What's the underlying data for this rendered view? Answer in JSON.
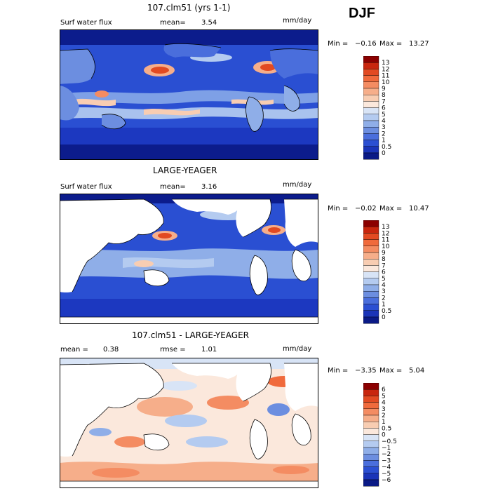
{
  "season": "DJF",
  "panels": [
    {
      "title": "107.clm51 (yrs 1-1)",
      "left_label": "Surf water flux",
      "mean_label": "mean=",
      "mean_value": "3.54",
      "units": "mm/day",
      "min_label": "Min =",
      "min_value": "−0.16",
      "max_label": "Max =",
      "max_value": "13.27",
      "colorbar_levels": [
        "13",
        "12",
        "11",
        "10",
        "9",
        "8",
        "7",
        "6",
        "5",
        "4",
        "3",
        "2",
        "1",
        "0.5",
        "0"
      ],
      "colorbar_colors": [
        "#8b0000",
        "#c8260e",
        "#e24a22",
        "#f06a3c",
        "#f48c62",
        "#f6ae8a",
        "#f8cdb2",
        "#fbe8dc",
        "#d8e4f6",
        "#b4cbf0",
        "#8faee8",
        "#6c8ee0",
        "#4a6edc",
        "#2b4fd2",
        "#1a34b8",
        "#0a1a86"
      ]
    },
    {
      "title": "LARGE-YEAGER",
      "left_label": "Surf water flux",
      "mean_label": "mean=",
      "mean_value": "3.16",
      "units": "mm/day",
      "min_label": "Min =",
      "min_value": "−0.02",
      "max_label": "Max =",
      "max_value": "10.47",
      "colorbar_levels": [
        "13",
        "12",
        "11",
        "10",
        "9",
        "8",
        "7",
        "6",
        "5",
        "4",
        "3",
        "2",
        "1",
        "0.5",
        "0"
      ],
      "colorbar_colors": [
        "#8b0000",
        "#c8260e",
        "#e24a22",
        "#f06a3c",
        "#f48c62",
        "#f6ae8a",
        "#f8cdb2",
        "#fbe8dc",
        "#d8e4f6",
        "#b4cbf0",
        "#8faee8",
        "#6c8ee0",
        "#4a6edc",
        "#2b4fd2",
        "#1a34b8",
        "#0a1a86"
      ]
    },
    {
      "title": "107.clm51 - LARGE-YEAGER",
      "left_label": "mean =",
      "left_value": "0.38",
      "rmse_label": "rmse =",
      "rmse_value": "1.01",
      "units": "mm/day",
      "min_label": "Min =",
      "min_value": "−3.35",
      "max_label": "Max =",
      "max_value": "5.04",
      "colorbar_levels": [
        "6",
        "5",
        "4",
        "3",
        "2",
        "1",
        "0.5",
        "0",
        "−0.5",
        "−1",
        "−2",
        "−3",
        "−4",
        "−5",
        "−6"
      ],
      "colorbar_colors": [
        "#8b0000",
        "#c8260e",
        "#e24a22",
        "#f06a3c",
        "#f48c62",
        "#f6ae8a",
        "#f8cdb2",
        "#fbe8dc",
        "#d8e4f6",
        "#b4cbf0",
        "#8faee8",
        "#6c8ee0",
        "#4a6edc",
        "#2b4fd2",
        "#1a34b8",
        "#0a1a86"
      ]
    }
  ]
}
